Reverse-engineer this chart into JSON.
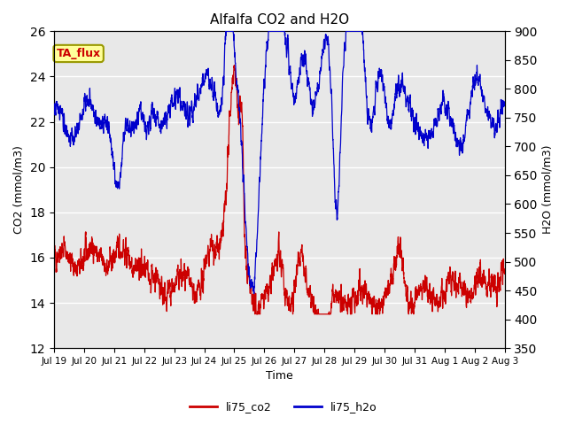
{
  "title": "Alfalfa CO2 and H2O",
  "xlabel": "Time",
  "ylabel_left": "CO2 (mmol/m3)",
  "ylabel_right": "H2O (mmol/m3)",
  "ylim_left": [
    12,
    26
  ],
  "ylim_right": [
    350,
    900
  ],
  "yticks_left": [
    12,
    14,
    16,
    18,
    20,
    22,
    24,
    26
  ],
  "yticks_right": [
    350,
    400,
    450,
    500,
    550,
    600,
    650,
    700,
    750,
    800,
    850,
    900
  ],
  "color_co2": "#cc0000",
  "color_h2o": "#0000cc",
  "annotation_text": "TA_flux",
  "annotation_fc": "#ffff99",
  "annotation_ec": "#999900",
  "plot_bg_color": "#e8e8e8",
  "legend_co2": "li75_co2",
  "legend_h2o": "li75_h2o",
  "xtick_labels": [
    "Jul 19",
    "Jul 20",
    "Jul 21",
    "Jul 22",
    "Jul 23",
    "Jul 24",
    "Jul 25",
    "Jul 26",
    "Jul 27",
    "Jul 28",
    "Jul 29",
    "Jul 30",
    "Jul 31",
    "Aug 1",
    "Aug 2",
    "Aug 3"
  ],
  "grid_color": "#ffffff",
  "lw_co2": 0.9,
  "lw_h2o": 0.9
}
